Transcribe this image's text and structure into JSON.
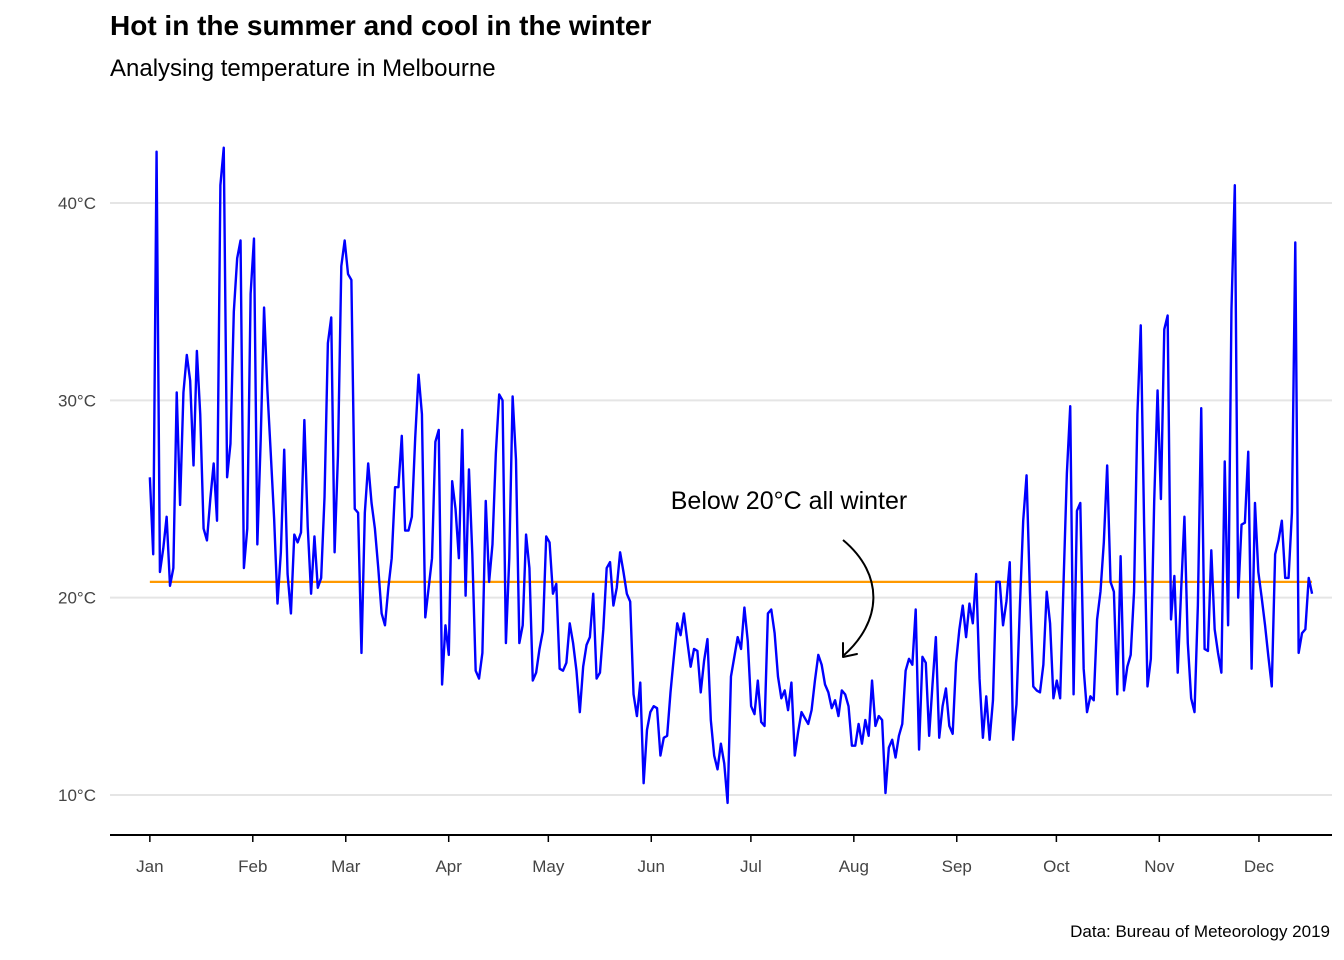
{
  "title": "Hot in the summer and cool in the winter",
  "subtitle": "Analysing temperature in Melbourne",
  "caption": "Data: Bureau of Meteorology 2019",
  "annotation": "Below 20°C all winter",
  "colors": {
    "series": "#0000ff",
    "reference": "#ff9900",
    "grid": "#e5e5e5",
    "axis": "#000000"
  },
  "chart_data": {
    "type": "line",
    "xlabel": "",
    "ylabel": "",
    "x_unit": "date (2019)",
    "x_tick_labels": [
      "Jan",
      "Feb",
      "Mar",
      "Apr",
      "May",
      "Jun",
      "Jul",
      "Aug",
      "Sep",
      "Oct",
      "Nov",
      "Dec"
    ],
    "x_tick_dates": [
      "2019-01-01",
      "2019-02-01",
      "2019-03-01",
      "2019-04-01",
      "2019-05-01",
      "2019-06-01",
      "2019-07-01",
      "2019-08-01",
      "2019-09-01",
      "2019-10-01",
      "2019-11-01",
      "2019-12-01"
    ],
    "y_ticks": [
      10,
      20,
      30,
      40
    ],
    "y_tick_labels": [
      "10°C",
      "20°C",
      "30°C",
      "40°C"
    ],
    "ylim": [
      8,
      44
    ],
    "xlim": [
      "2018-12-20",
      "2019-12-23"
    ],
    "grid": "horizontal major only",
    "reference_line": {
      "y": 20.8,
      "color": "#ff9900"
    },
    "series": [
      {
        "start_date": "2019-01-01",
        "end_date": "2019-12-17",
        "daily_max_temp_c": [
          26.1,
          22.2,
          42.6,
          21.3,
          22.5,
          24.1,
          20.6,
          21.5,
          30.4,
          24.7,
          30.4,
          32.3,
          31.0,
          26.7,
          32.5,
          29.3,
          23.5,
          22.9,
          25.0,
          26.8,
          23.9,
          40.9,
          42.8,
          26.1,
          27.8,
          34.5,
          37.2,
          38.1,
          21.5,
          23.5,
          35.4,
          38.2,
          22.7,
          28.0,
          34.7,
          30.5,
          27.3,
          24.0,
          19.7,
          22.3,
          27.5,
          21.2,
          19.2,
          23.2,
          22.8,
          23.3,
          29.0,
          23.6,
          20.2,
          23.1,
          20.5,
          21.0,
          25.1,
          32.9,
          34.2,
          22.3,
          27.2,
          36.8,
          38.1,
          36.4,
          36.1,
          24.5,
          24.3,
          17.2,
          24.3,
          26.8,
          24.8,
          23.5,
          21.5,
          19.2,
          18.6,
          20.5,
          22.0,
          25.6,
          25.6,
          28.2,
          23.4,
          23.4,
          24.1,
          28.1,
          31.3,
          29.3,
          19.0,
          20.5,
          22.0,
          27.9,
          28.5,
          15.6,
          18.6,
          17.1,
          25.9,
          24.5,
          22.0,
          28.5,
          20.1,
          26.5,
          22.2,
          16.3,
          15.9,
          17.2,
          24.9,
          20.8,
          22.7,
          27.3,
          30.3,
          30.0,
          17.7,
          22.0,
          30.2,
          27.0,
          17.7,
          18.6,
          23.2,
          21.5,
          15.8,
          16.2,
          17.4,
          18.3,
          23.1,
          22.8,
          20.2,
          20.7,
          16.4,
          16.3,
          16.7,
          18.7,
          17.7,
          16.3,
          14.2,
          16.5,
          17.6,
          18.0,
          20.2,
          15.9,
          16.2,
          18.4,
          21.5,
          21.8,
          19.6,
          20.5,
          22.3,
          21.3,
          20.2,
          19.8,
          15.1,
          14.0,
          15.7,
          10.6,
          13.3,
          14.2,
          14.5,
          14.4,
          12.0,
          12.9,
          13.0,
          15.2,
          17.0,
          18.7,
          18.1,
          19.2,
          17.8,
          16.5,
          17.4,
          17.3,
          15.2,
          16.8,
          17.9,
          13.8,
          12.0,
          11.3,
          12.6,
          11.6,
          9.6,
          16.0,
          17.0,
          18.0,
          17.4,
          19.5,
          17.8,
          14.5,
          14.1,
          15.8,
          13.7,
          13.5,
          19.2,
          19.4,
          18.2,
          16.0,
          14.9,
          15.3,
          14.3,
          15.7,
          12.0,
          13.2,
          14.2,
          13.9,
          13.6,
          14.3,
          15.8,
          17.1,
          16.6,
          15.6,
          15.2,
          14.4,
          14.8,
          14.0,
          15.3,
          15.1,
          14.5,
          12.5,
          12.5,
          13.6,
          12.6,
          13.8,
          13.0,
          15.8,
          13.5,
          14.0,
          13.8,
          10.1,
          12.4,
          12.8,
          11.9,
          13.0,
          13.6,
          16.3,
          16.9,
          16.6,
          19.4,
          12.3,
          17.0,
          16.7,
          13.0,
          15.6,
          18.0,
          12.9,
          14.5,
          15.4,
          13.5,
          13.1,
          16.7,
          18.4,
          19.6,
          18.0,
          19.7,
          18.7,
          21.2,
          15.9,
          12.9,
          15.0,
          12.8,
          14.8,
          20.8,
          20.8,
          18.6,
          19.8,
          21.8,
          12.8,
          14.6,
          19.5,
          23.9,
          26.2,
          20.3,
          15.5,
          15.3,
          15.2,
          16.6,
          20.3,
          18.7,
          14.9,
          15.8,
          14.9,
          20.7,
          26.3,
          29.7,
          15.1,
          24.4,
          24.8,
          16.4,
          14.2,
          15.0,
          14.8,
          18.9,
          20.3,
          22.8,
          26.7,
          20.8,
          20.3,
          15.1,
          22.1,
          15.3,
          16.5,
          17.1,
          20.3,
          29.3,
          33.8,
          23.7,
          15.5,
          16.9,
          24.9,
          30.5,
          25.0,
          33.6,
          34.3,
          18.9,
          21.1,
          16.2,
          20.3,
          24.1,
          17.7,
          14.9,
          14.2,
          19.6,
          29.6,
          17.4,
          17.3,
          22.4,
          18.4,
          17.2,
          16.2,
          26.9,
          18.6,
          34.6,
          40.9,
          20.0,
          23.7,
          23.8,
          27.4,
          16.4,
          24.8,
          21.3,
          20.0,
          18.6,
          17.0,
          15.5,
          22.2,
          22.9,
          23.9,
          21.0,
          21.0,
          24.3,
          38.0,
          17.2,
          18.2,
          18.4,
          21.0,
          20.2
        ]
      }
    ]
  }
}
